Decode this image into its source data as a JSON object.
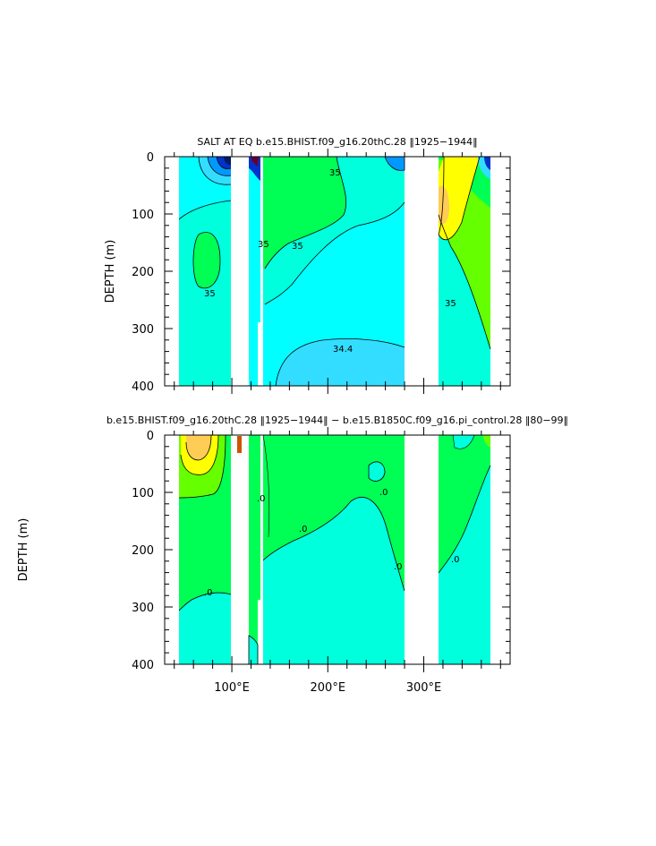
{
  "panels": [
    {
      "title": "SALT AT EQ  b.e15.BHIST.f09_g16.20thC.28  ‖1925−1944‖",
      "ylabel": "DEPTH  (m)",
      "contour_labels": [
        "35",
        "35",
        "35",
        "35",
        "34.4",
        "35"
      ]
    },
    {
      "title": "b.e15.BHIST.f09_g16.20thC.28  ‖1925−1944‖  −  b.e15.B1850C.f09_g16.pi_control.28  ‖80−99‖",
      "ylabel": "DEPTH  (m)",
      "contour_labels": [
        ".0",
        ".0",
        ".0",
        ".0",
        ".0",
        ".0"
      ]
    }
  ],
  "colors": {
    "aqua": "#00ffdd",
    "cyan": "#00ffff",
    "green": "#00ff55",
    "light_green": "#66ff00",
    "yellow": "#ffff00",
    "orange": "#ffcc55",
    "blue": "#0099ff",
    "deep_blue": "#0033cc",
    "sky": "#33ddff"
  },
  "chart_data": [
    {
      "type": "heatmap",
      "title": "SALT AT EQ  b.e15.BHIST.f09_g16.20thC.28  ‖1925−1944‖",
      "xlabel": "",
      "ylabel": "DEPTH  (m)",
      "xlim": [
        30,
        390
      ],
      "ylim": [
        400,
        0
      ],
      "y_ticks": [
        "0",
        "100",
        "200",
        "300",
        "400"
      ],
      "y_tick_values": [
        0,
        100,
        200,
        300,
        400
      ],
      "x_tick_values": [
        100,
        200,
        300
      ],
      "contour_labels": [
        "35",
        "35",
        "35",
        "35",
        "34.4",
        "35"
      ],
      "grid": false
    },
    {
      "type": "heatmap",
      "title": "b.e15.BHIST.f09_g16.20thC.28  ‖1925−1944‖  −  b.e15.B1850C.f09_g16.pi_control.28  ‖80−99‖",
      "xlabel": "",
      "ylabel": "DEPTH  (m)",
      "xlim": [
        30,
        390
      ],
      "ylim": [
        400,
        0
      ],
      "x_ticks": [
        "100°E",
        "200°E",
        "300°E"
      ],
      "x_tick_values": [
        100,
        200,
        300
      ],
      "y_ticks": [
        "0",
        "100",
        "200",
        "300",
        "400"
      ],
      "y_tick_values": [
        0,
        100,
        200,
        300,
        400
      ],
      "contour_labels": [
        ".0",
        ".0",
        ".0",
        ".0",
        ".0",
        ".0"
      ],
      "grid": false
    }
  ]
}
